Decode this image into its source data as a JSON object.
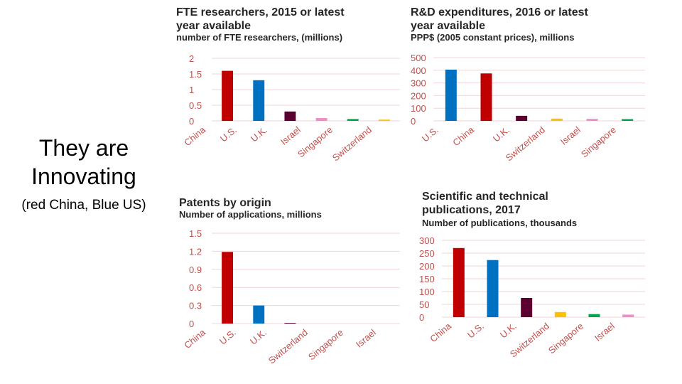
{
  "slide": {
    "heading_line1": "They are",
    "heading_line2": "Innovating",
    "note": "(red China, Blue US)"
  },
  "colors": {
    "China": "#c00000",
    "U.S.": "#0070c0",
    "U.K.": "#5c0032",
    "Israel": "#f28cc8",
    "Singapore": "#00a550",
    "Switzerland": "#ffc000",
    "tick": "#c0504d",
    "grid": "#f2d5d5"
  },
  "chart_data": [
    {
      "type": "bar",
      "title": [
        "FTE researchers, 2015 or latest",
        "year available"
      ],
      "ylabel": "number of FTE researchers, (millions)",
      "categories": [
        "China",
        "U.S.",
        "U.K.",
        "Israel",
        "Singapore",
        "Switzerland"
      ],
      "values": [
        1.6,
        1.3,
        0.3,
        0.09,
        0.06,
        0.04
      ],
      "ylim": [
        0,
        2
      ],
      "ticks": [
        "0",
        "0.5",
        "1",
        "1.5",
        "2"
      ]
    },
    {
      "type": "bar",
      "title": [
        "R&D expenditures, 2016 or latest",
        "year available"
      ],
      "ylabel": "PPP$ (2005 constant prices), millions",
      "categories": [
        "U.S.",
        "China",
        "U.K.",
        "Switzerland",
        "Israel",
        "Singapore"
      ],
      "values": [
        405,
        375,
        40,
        18,
        16,
        14
      ],
      "ylim": [
        0,
        500
      ],
      "ticks": [
        "0",
        "100",
        "200",
        "300",
        "400",
        "500"
      ]
    },
    {
      "type": "bar",
      "title": [
        "Patents by origin"
      ],
      "ylabel": "Number of applications, millions",
      "categories": [
        "China",
        "U.S.",
        "U.K.",
        "Switzerland",
        "Singapore",
        "Israel"
      ],
      "values": [
        1.19,
        0.3,
        0.01,
        0,
        0,
        0
      ],
      "ylim": [
        0,
        1.5
      ],
      "ticks": [
        "0",
        "0.3",
        "0.6",
        "0.9",
        "1.2",
        "1.5"
      ]
    },
    {
      "type": "bar",
      "title": [
        "Scientific and technical",
        "publications, 2017"
      ],
      "ylabel": "Number of publications, thousands",
      "categories": [
        "China",
        "U.S.",
        "U.K.",
        "Switzerland",
        "Singapore",
        "Israel"
      ],
      "values": [
        270,
        223,
        75,
        20,
        12,
        10
      ],
      "ylim": [
        0,
        300
      ],
      "ticks": [
        "0",
        "50",
        "100",
        "150",
        "200",
        "250",
        "300"
      ]
    }
  ]
}
